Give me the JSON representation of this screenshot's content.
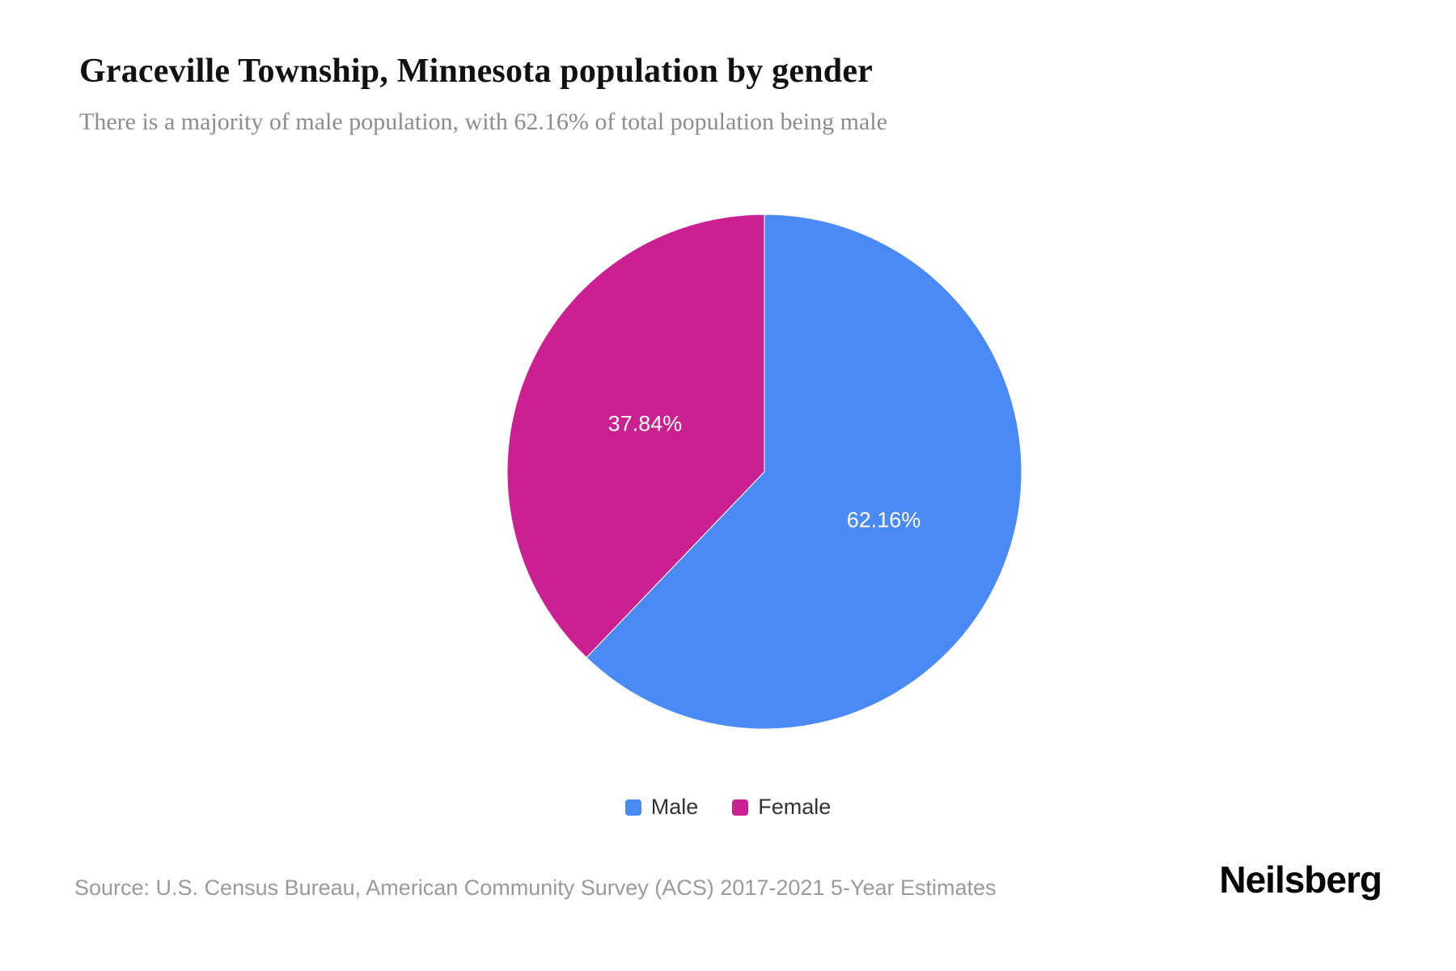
{
  "header": {
    "title": "Graceville Township, Minnesota population by gender",
    "subtitle": "There is a majority of male population, with 62.16% of total population being male"
  },
  "chart_data": {
    "type": "pie",
    "title": "Graceville Township, Minnesota population by gender",
    "start_angle_deg": 0,
    "direction": "clockwise",
    "legend_position": "bottom",
    "series": [
      {
        "name": "Male",
        "value": 62.16,
        "label": "62.16%",
        "color": "#4a8af4"
      },
      {
        "name": "Female",
        "value": 37.84,
        "label": "37.84%",
        "color": "#ca2092"
      }
    ]
  },
  "footer": {
    "source": "Source: U.S. Census Bureau, American Community Survey (ACS) 2017-2021 5-Year Estimates",
    "brand": "Neilsberg"
  }
}
